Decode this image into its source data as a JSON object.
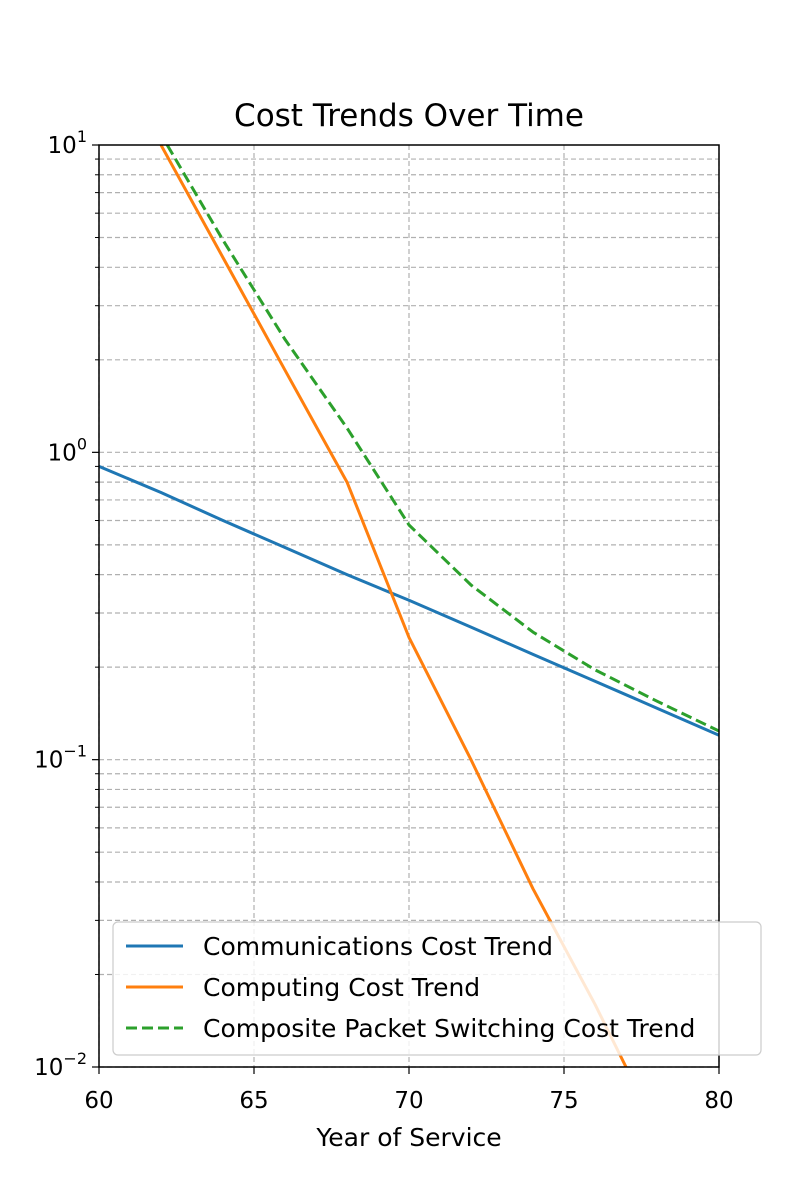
{
  "chart_data": {
    "type": "line",
    "title": "Cost Trends Over Time",
    "xlabel": "Year of Service",
    "ylabel": "",
    "xlim": [
      60,
      80
    ],
    "ylim": [
      0.01,
      10
    ],
    "yscale": "log",
    "grid": true,
    "legend_position": "lower-right",
    "x_ticks": [
      {
        "value": 60,
        "label": "60"
      },
      {
        "value": 65,
        "label": "65"
      },
      {
        "value": 70,
        "label": "70"
      },
      {
        "value": 75,
        "label": "75"
      },
      {
        "value": 80,
        "label": "80"
      }
    ],
    "y_ticks": [
      {
        "value": 10,
        "base": "10",
        "exp": "1"
      },
      {
        "value": 1,
        "base": "10",
        "exp": "0"
      },
      {
        "value": 0.1,
        "base": "10",
        "exp": "−1"
      },
      {
        "value": 0.01,
        "base": "10",
        "exp": "−2"
      }
    ],
    "series": [
      {
        "name": "Communications Cost Trend",
        "color": "#1f77b4",
        "style": "solid",
        "x": [
          60,
          62,
          64,
          66,
          68,
          70,
          72,
          74,
          76,
          78,
          80
        ],
        "y": [
          0.9,
          0.74,
          0.6,
          0.49,
          0.4,
          0.33,
          0.27,
          0.22,
          0.18,
          0.147,
          0.12
        ]
      },
      {
        "name": "Computing Cost Trend",
        "color": "#ff7f0e",
        "style": "solid",
        "x": [
          62,
          64,
          66,
          68,
          70,
          72,
          74,
          76,
          77
        ],
        "y": [
          10,
          4.3,
          1.85,
          0.8,
          0.25,
          0.1,
          0.038,
          0.016,
          0.01
        ]
      },
      {
        "name": "Composite Packet Switching Cost Trend",
        "color": "#2ca02c",
        "style": "dashed",
        "x": [
          62.2,
          64,
          66,
          68,
          70,
          72,
          74,
          76,
          78,
          80
        ],
        "y": [
          10,
          4.9,
          2.33,
          1.2,
          0.58,
          0.37,
          0.26,
          0.196,
          0.155,
          0.124
        ]
      }
    ]
  }
}
